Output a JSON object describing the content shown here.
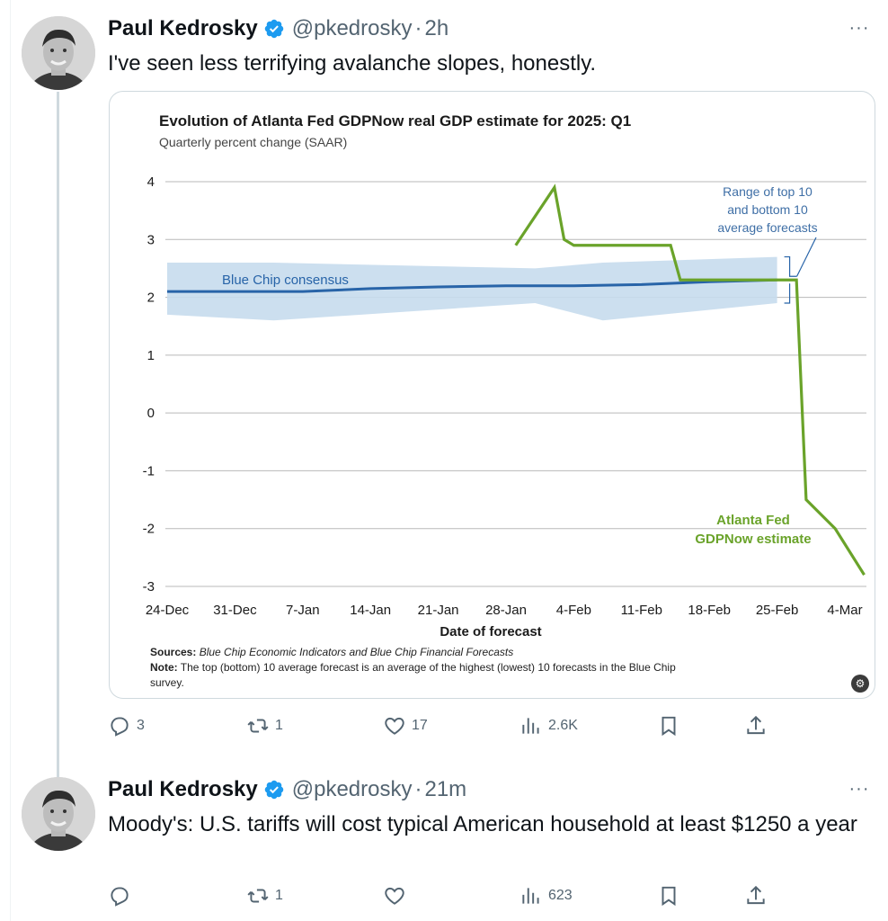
{
  "tweets": [
    {
      "name": "Paul Kedrosky",
      "handle": "@pkedrosky",
      "dot": "·",
      "time": "2h",
      "more": "···",
      "text": "I've seen less terrifying avalanche slopes, honestly.",
      "stats": {
        "replies": "3",
        "retweets": "1",
        "likes": "17",
        "views": "2.6K"
      }
    },
    {
      "name": "Paul Kedrosky",
      "handle": "@pkedrosky",
      "dot": "·",
      "time": "21m",
      "more": "···",
      "text": "Moody's: U.S. tariffs will cost typical American household at least $1250 a year",
      "stats": {
        "replies": "",
        "retweets": "1",
        "likes": "",
        "views": "623"
      }
    }
  ],
  "colors": {
    "brand": "#1d9bf0",
    "text": "#0f1419",
    "muted": "#536471",
    "gdpnow": "#6aa32a",
    "consensus": "#2864a8",
    "band": "#c7dced"
  },
  "icons": {
    "reply": "reply-icon",
    "retweet": "retweet-icon",
    "like": "heart-icon",
    "views": "views-icon",
    "bookmark": "bookmark-icon",
    "share": "share-icon",
    "verified": "verified-badge-icon",
    "more": "more-icon"
  },
  "chart_data": {
    "type": "line",
    "title": "Evolution of Atlanta Fed GDPNow real GDP estimate for 2025: Q1",
    "subtitle": "Quarterly percent change (SAAR)",
    "xlabel": "Date of forecast",
    "ylabel": "",
    "x_ticks": [
      "24-Dec",
      "31-Dec",
      "7-Jan",
      "14-Jan",
      "21-Jan",
      "28-Jan",
      "4-Feb",
      "11-Feb",
      "18-Feb",
      "25-Feb",
      "4-Mar"
    ],
    "y_ticks": [
      "4",
      "3",
      "2",
      "1",
      "0",
      "-1",
      "-2",
      "-3"
    ],
    "ylim": [
      -3,
      4
    ],
    "xlim": [
      "2024-12-24",
      "2025-03-04"
    ],
    "grid": true,
    "series": [
      {
        "name": "Blue Chip consensus",
        "x": [
          "2024-12-24",
          "2025-01-07",
          "2025-01-14",
          "2025-01-21",
          "2025-01-28",
          "2025-02-04",
          "2025-02-11",
          "2025-02-18",
          "2025-02-25"
        ],
        "values": [
          2.1,
          2.1,
          2.15,
          2.18,
          2.2,
          2.2,
          2.22,
          2.27,
          2.3
        ]
      },
      {
        "name": "Atlanta Fed GDPNow estimate",
        "x": [
          "2025-01-29",
          "2025-02-02",
          "2025-02-03",
          "2025-02-04",
          "2025-02-14",
          "2025-02-15",
          "2025-02-27",
          "2025-02-28",
          "2025-03-03",
          "2025-03-06"
        ],
        "values": [
          2.9,
          3.9,
          3.0,
          2.9,
          2.9,
          2.3,
          2.3,
          -1.5,
          -2.0,
          -2.8
        ]
      }
    ],
    "band": {
      "name": "Range of top 10 and bottom 10 average forecasts",
      "x": [
        "2024-12-24",
        "2025-01-04",
        "2025-01-31",
        "2025-02-07",
        "2025-02-25"
      ],
      "upper": [
        2.6,
        2.6,
        2.5,
        2.6,
        2.7
      ],
      "lower": [
        1.7,
        1.6,
        1.9,
        1.6,
        1.9
      ]
    },
    "annotations": {
      "range": [
        "Range of top 10",
        "and bottom 10",
        "average forecasts"
      ],
      "consensus": "Blue Chip consensus",
      "gdpnow": [
        "Atlanta Fed",
        "GDPNow estimate"
      ]
    },
    "sources_label": "Sources:",
    "sources": "Blue Chip Economic Indicators and Blue Chip Financial Forecasts",
    "note_label": "Note:",
    "note_line1": "The top (bottom) 10 average forecast is an average of the highest (lowest) 10 forecasts in the Blue Chip",
    "note_line2": "survey."
  }
}
